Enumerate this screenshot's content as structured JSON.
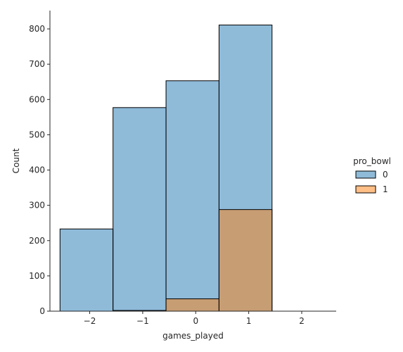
{
  "chart_data": {
    "type": "bar",
    "xlabel": "games_played",
    "ylabel": "Count",
    "xlim": [
      -2.75,
      2.65
    ],
    "ylim": [
      0,
      852
    ],
    "xticks": [
      -2,
      -1,
      0,
      1,
      2
    ],
    "xtick_labels": [
      "−2",
      "−1",
      "0",
      "1",
      "2"
    ],
    "yticks": [
      0,
      100,
      200,
      300,
      400,
      500,
      600,
      700,
      800
    ],
    "yticks_labels": [
      "0",
      "100",
      "200",
      "300",
      "400",
      "500",
      "600",
      "700",
      "800"
    ],
    "bin_edges": [
      -2.56,
      -1.56,
      -0.56,
      0.44,
      1.44,
      2.44
    ],
    "legend": {
      "title": "pro_bowl",
      "placement": "center-right"
    },
    "series": [
      {
        "name": "0",
        "color": "#1f77b4",
        "values": [
          233,
          577,
          653,
          811,
          0
        ]
      },
      {
        "name": "1",
        "color": "#ff7f0e",
        "values": [
          0,
          2,
          35,
          288,
          0
        ]
      }
    ],
    "grid": false
  }
}
